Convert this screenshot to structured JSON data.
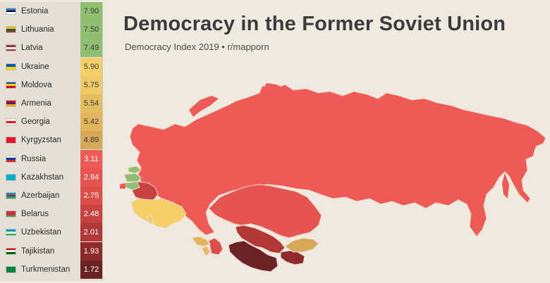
{
  "header": {
    "title": "Democracy in the Former Soviet Union",
    "subtitle": "Democracy Index 2019  •  r/mapporn"
  },
  "colors": {
    "background": "#efeae0",
    "panel": "#e4e0d8",
    "high": "#8fbf73",
    "mid_high": "#f5d06a",
    "mid": "#e2b45c",
    "low": "#ee5b57",
    "lower": "#d94e4a",
    "lowest": "#6b2224"
  },
  "legend": [
    {
      "country": "Estonia",
      "score": "7.90",
      "color": "#8fbf73",
      "flag": [
        "#3a75c4",
        "#000000",
        "#ffffff"
      ]
    },
    {
      "country": "Lithuania",
      "score": "7.50",
      "color": "#8fbf73",
      "flag": [
        "#fdb913",
        "#006a44",
        "#c1272d"
      ]
    },
    {
      "country": "Latvia",
      "score": "7.49",
      "color": "#8fbf73",
      "flag": [
        "#9e3039",
        "#ffffff",
        "#9e3039"
      ]
    },
    {
      "country": "Ukraine",
      "score": "5.90",
      "color": "#f5d06a",
      "flag": [
        "#0057b7",
        "#ffd700"
      ]
    },
    {
      "country": "Moldova",
      "score": "5.75",
      "color": "#f0ca66",
      "flag": [
        "#0046ae",
        "#ffd200",
        "#cc092f"
      ]
    },
    {
      "country": "Armenia",
      "score": "5.54",
      "color": "#e6bc60",
      "flag": [
        "#d90012",
        "#0033a0",
        "#f2a800"
      ]
    },
    {
      "country": "Georgia",
      "score": "5.42",
      "color": "#e2b45c",
      "flag": [
        "#ffffff",
        "#ff0000",
        "#ffffff"
      ]
    },
    {
      "country": "Kyrgyzstan",
      "score": "4.89",
      "color": "#d6a959",
      "flag": [
        "#e8112d"
      ]
    },
    {
      "country": "Russia",
      "score": "3.11",
      "color": "#ee5b57",
      "flag": [
        "#ffffff",
        "#0039a6",
        "#d52b1e"
      ]
    },
    {
      "country": "Kazakhstan",
      "score": "2.94",
      "color": "#e65452",
      "flag": [
        "#00afca"
      ]
    },
    {
      "country": "Azerbaijan",
      "score": "2.75",
      "color": "#dc4e4b",
      "flag": [
        "#0092bc",
        "#e4002b",
        "#00af66"
      ]
    },
    {
      "country": "Belarus",
      "score": "2.48",
      "color": "#c74242",
      "flag": [
        "#c8313e",
        "#c8313e",
        "#4aa657"
      ]
    },
    {
      "country": "Uzbekistan",
      "score": "2.01",
      "color": "#b23838",
      "flag": [
        "#0099b5",
        "#ffffff",
        "#1eb53a"
      ]
    },
    {
      "country": "Tajikistan",
      "score": "1.93",
      "color": "#8f2a2c",
      "flag": [
        "#cc0000",
        "#ffffff",
        "#006600"
      ]
    },
    {
      "country": "Turkmenistan",
      "score": "1.72",
      "color": "#6b2224",
      "flag": [
        "#00843d"
      ]
    }
  ]
}
